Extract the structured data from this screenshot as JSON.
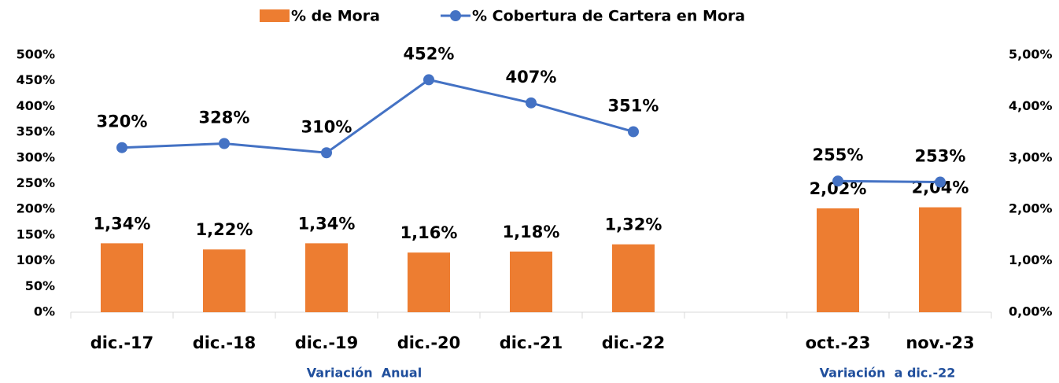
{
  "chart_data": {
    "type": "combo",
    "categories": [
      "dic.-17",
      "dic.-18",
      "dic.-19",
      "dic.-20",
      "dic.-21",
      "dic.-22",
      null,
      "oct.-23",
      "nov.-23"
    ],
    "series": [
      {
        "name": "% de Mora",
        "type": "bar",
        "axis": "y2",
        "color": "#ed7d31",
        "values": [
          1.34,
          1.22,
          1.34,
          1.16,
          1.18,
          1.32,
          null,
          2.02,
          2.04
        ],
        "value_labels": [
          "1,34%",
          "1,22%",
          "1,34%",
          "1,16%",
          "1,18%",
          "1,32%",
          null,
          "2,02%",
          "2,04%"
        ]
      },
      {
        "name": "% Cobertura de Cartera en Mora",
        "type": "line",
        "color": "#4472c4",
        "values": [
          320,
          328,
          310,
          452,
          407,
          351,
          null,
          255,
          253
        ],
        "value_labels": [
          "320%",
          "328%",
          "310%",
          "452%",
          "407%",
          "351%",
          null,
          "255%",
          "253%"
        ]
      }
    ],
    "ylim": [
      0,
      500
    ],
    "yticks": [
      {
        "value": 0,
        "label": "0%"
      },
      {
        "value": 50,
        "label": "50%"
      },
      {
        "value": 100,
        "label": "100%"
      },
      {
        "value": 150,
        "label": "150%"
      },
      {
        "value": 200,
        "label": "200%"
      },
      {
        "value": 250,
        "label": "250%"
      },
      {
        "value": 300,
        "label": "300%"
      },
      {
        "value": 350,
        "label": "350%"
      },
      {
        "value": 400,
        "label": "400%"
      },
      {
        "value": 450,
        "label": "450%"
      },
      {
        "value": 500,
        "label": "500%"
      }
    ],
    "y2lim": [
      0,
      5
    ],
    "y2ticks": [
      {
        "value": 0,
        "label": "0,00%"
      },
      {
        "value": 1,
        "label": "1,00%"
      },
      {
        "value": 2,
        "label": "2,00%"
      },
      {
        "value": 3,
        "label": "3,00%"
      },
      {
        "value": 4,
        "label": "4,00%"
      },
      {
        "value": 5,
        "label": "5,00%"
      }
    ],
    "annotations": [
      "Variación  Anual",
      "Variación  a dic.-22"
    ]
  }
}
